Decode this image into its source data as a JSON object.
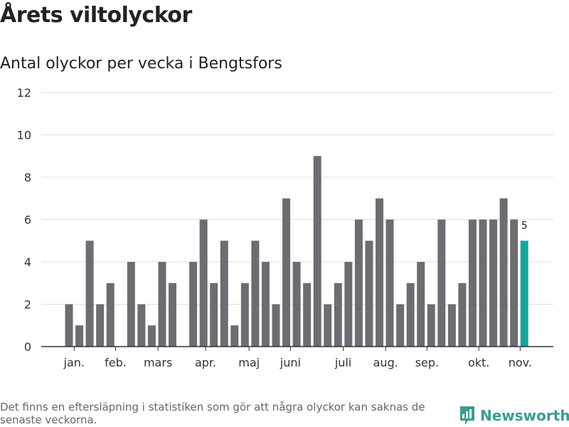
{
  "title": "Årets viltolyckor",
  "subtitle": "Antal olyckor per vecka i Bengtsfors",
  "footnote": "Det finns en eftersläpning i statistiken som gör att några olyckor kan saknas de senaste veckorna.",
  "brand": "Newsworthy",
  "colors": {
    "bar": "#6e6c72",
    "highlight": "#1aa59a",
    "grid": "#dddddd",
    "axis": "#333333",
    "brand": "#3b9c8f"
  },
  "chart_data": {
    "type": "bar",
    "title": "Årets viltolyckor",
    "subtitle": "Antal olyckor per vecka i Bengtsfors",
    "xlabel": "",
    "ylabel": "",
    "ylim": [
      0,
      12
    ],
    "yticks": [
      0,
      2,
      4,
      6,
      8,
      10,
      12
    ],
    "grid": true,
    "x_start_week": 1,
    "weeks_span": 47,
    "values": [
      0,
      2,
      1,
      5,
      2,
      3,
      0,
      4,
      2,
      1,
      4,
      3,
      0,
      4,
      6,
      3,
      5,
      1,
      3,
      5,
      4,
      2,
      7,
      4,
      3,
      9,
      2,
      3,
      4,
      6,
      5,
      7,
      6,
      2,
      3,
      4,
      2,
      6,
      2,
      3,
      6,
      6,
      6,
      7,
      6,
      5
    ],
    "highlight_index": 45,
    "highlight_label": "5",
    "month_labels": [
      {
        "label": "jan.",
        "week": 2.5
      },
      {
        "label": "feb.",
        "week": 6.5
      },
      {
        "label": "mars",
        "week": 10.6
      },
      {
        "label": "apr.",
        "week": 15.2
      },
      {
        "label": "maj",
        "week": 19.4
      },
      {
        "label": "juni",
        "week": 23.4
      },
      {
        "label": "juli",
        "week": 28.5
      },
      {
        "label": "aug.",
        "week": 32.6
      },
      {
        "label": "sep.",
        "week": 36.6
      },
      {
        "label": "okt.",
        "week": 41.6
      },
      {
        "label": "nov.",
        "week": 45.6
      }
    ]
  }
}
